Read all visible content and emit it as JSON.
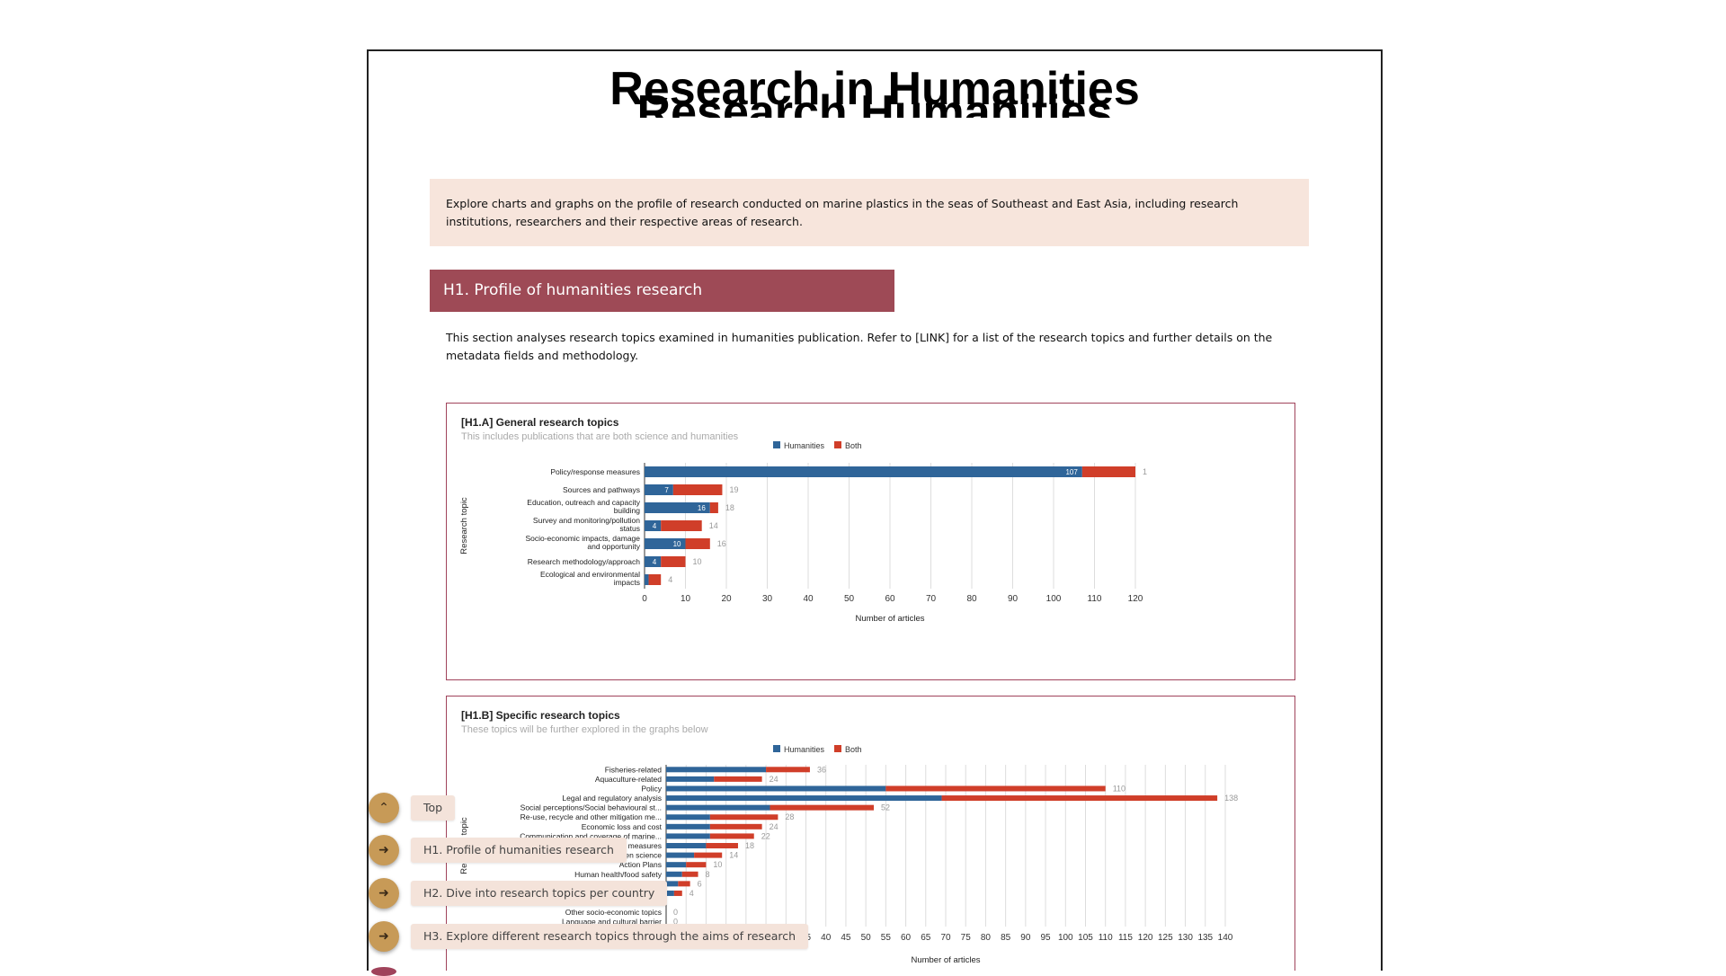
{
  "page": {
    "title": "Research in Humanities",
    "title_ghost": "Research Humanities",
    "intro": "Explore charts and graphs on the profile of research conducted on marine plastics in the seas of Southeast and East Asia, including research institutions, researchers and their respective areas of research.",
    "section_h1": {
      "heading": "H1. Profile of humanities research",
      "text": "This section analyses research topics examined in humanities publication. Refer to [LINK] for a list of the research topics and further details on the metadata fields and methodology."
    }
  },
  "colors": {
    "humanities": "#2f6599",
    "both": "#d03e29",
    "accent": "#9e4a56",
    "intro_bg": "#f7e5dc"
  },
  "nav": [
    {
      "label": "Top",
      "icon": "chevron-up-icon"
    },
    {
      "label": "H1. Profile of humanities research",
      "icon": "arrow-right-icon"
    },
    {
      "label": "H2. Dive into research topics per country",
      "icon": "arrow-right-icon"
    },
    {
      "label": "H3. Explore different research topics through the aims of research",
      "icon": "arrow-right-icon"
    }
  ],
  "chart_data": [
    {
      "type": "bar",
      "orientation": "horizontal",
      "stacked": true,
      "title": "[H1.A] General research topics",
      "subtitle": "This includes publications that are both science and humanities",
      "xlabel": "Number of articles",
      "ylabel": "Research topic",
      "xlim": [
        0,
        120
      ],
      "xticks": [
        0,
        10,
        20,
        30,
        40,
        50,
        60,
        70,
        80,
        90,
        100,
        110,
        120
      ],
      "legend": [
        "Humanities",
        "Both"
      ],
      "legend_position": "top",
      "grid": true,
      "categories": [
        [
          "Policy/response measures"
        ],
        [
          "Sources and pathways"
        ],
        [
          "Education, outreach and capacity",
          "building"
        ],
        [
          "Survey and monitoring/pollution",
          "status"
        ],
        [
          "Socio-economic impacts, damage",
          "and opportunity"
        ],
        [
          "Research methodology/approach"
        ],
        [
          "Ecological and environmental",
          "impacts"
        ]
      ],
      "series": [
        {
          "name": "Humanities",
          "values": [
            107,
            7,
            16,
            4,
            10,
            4,
            1
          ],
          "labels": [
            "107",
            "7",
            "16",
            "4",
            "10",
            "4",
            ""
          ]
        },
        {
          "name": "Both",
          "values": [
            13,
            12,
            2,
            10,
            6,
            6,
            3
          ],
          "labels": [
            "1",
            "19",
            "18",
            "14",
            "16",
            "10",
            "4"
          ]
        }
      ]
    },
    {
      "type": "bar",
      "orientation": "horizontal",
      "stacked": true,
      "title": "[H1.B] Specific research topics",
      "subtitle": "These topics will be further explored in the graphs below",
      "xlabel": "Number of articles",
      "ylabel": "Research topic",
      "xlim": [
        0,
        140
      ],
      "xticks": [
        0,
        5,
        10,
        15,
        20,
        25,
        30,
        35,
        40,
        45,
        50,
        55,
        60,
        65,
        70,
        75,
        80,
        85,
        90,
        95,
        100,
        105,
        110,
        115,
        120,
        125,
        130,
        135,
        140
      ],
      "xtick_labels_visible": [
        "35",
        "40",
        "45",
        "50",
        "55",
        "60",
        "65",
        "70",
        "75",
        "80",
        "85",
        "90",
        "95",
        "100",
        "105",
        "110",
        "115",
        "120",
        "125",
        "130",
        "135",
        "140"
      ],
      "legend": [
        "Humanities",
        "Both"
      ],
      "legend_position": "top",
      "grid": true,
      "categories": [
        "Fisheries-related",
        "Aquaculture-related",
        "Policy",
        "Legal and regulatory analysis",
        "Social perceptions/Social behavioural st...",
        "Re-use, recycle and other mitigation me...",
        "Economic loss and cost",
        "Communication and coverage of marine...",
        "measures",
        "en science",
        "Action Plans",
        "Human health/food safety",
        "",
        "s",
        "",
        "Other socio-economic topics",
        "Language and cultural barrier"
      ],
      "series": [
        {
          "name": "Humanities",
          "values": [
            25,
            12,
            55,
            69,
            26,
            11,
            11,
            11,
            10,
            7,
            5,
            4,
            3,
            2,
            0,
            0,
            0
          ]
        },
        {
          "name": "Both",
          "values": [
            11,
            12,
            55,
            69,
            26,
            17,
            13,
            11,
            8,
            7,
            5,
            4,
            3,
            2,
            0,
            0,
            0
          ]
        }
      ],
      "totals": [
        "36",
        "24",
        "110",
        "138",
        "52",
        "28",
        "24",
        "22",
        "18",
        "14",
        "10",
        "8",
        "6",
        "4",
        "",
        "0",
        "0"
      ]
    }
  ]
}
